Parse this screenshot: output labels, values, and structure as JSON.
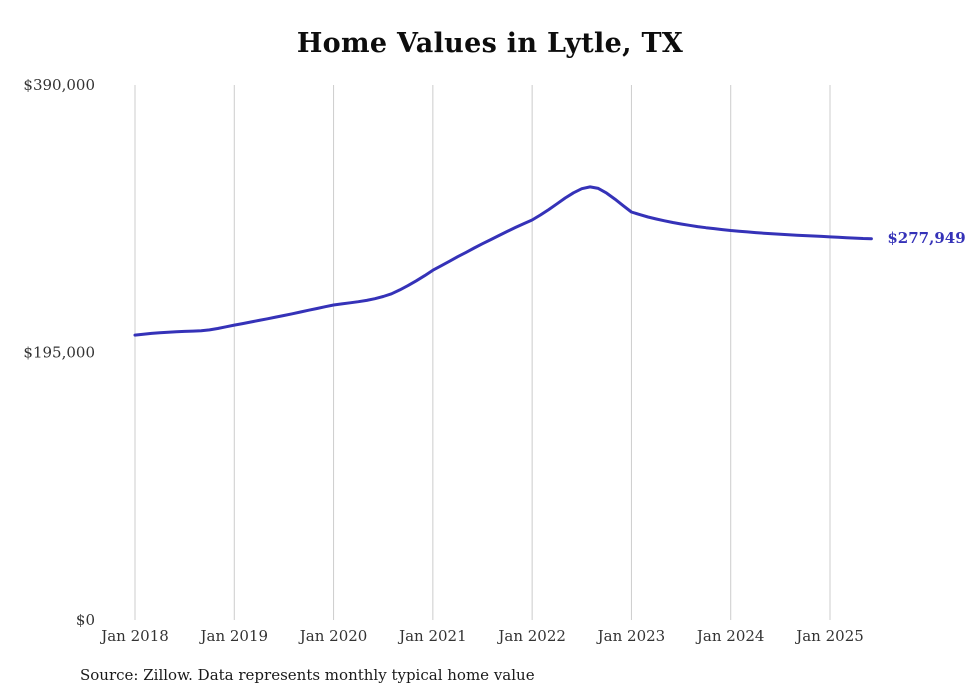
{
  "chart_data": {
    "type": "line",
    "title": "Home Values in Lytle, TX",
    "source": "Source: Zillow. Data represents monthly typical home value",
    "end_label": "$277,949",
    "latest_value": 277949,
    "ylim": [
      0,
      390000
    ],
    "grid": "vertical-only",
    "legend": "none",
    "colors": {
      "line": "#3532b8",
      "grid": "#cccccc",
      "tick": "#333333",
      "title": "#0d0d0d"
    },
    "y_ticks": [
      {
        "label": "$0",
        "value": 0
      },
      {
        "label": "$195,000",
        "value": 195000
      },
      {
        "label": "$390,000",
        "value": 390000
      }
    ],
    "x_ticks": [
      {
        "label": "Jan 2018",
        "month_index": 0
      },
      {
        "label": "Jan 2019",
        "month_index": 12
      },
      {
        "label": "Jan 2020",
        "month_index": 24
      },
      {
        "label": "Jan 2021",
        "month_index": 36
      },
      {
        "label": "Jan 2022",
        "month_index": 48
      },
      {
        "label": "Jan 2023",
        "month_index": 60
      },
      {
        "label": "Jan 2024",
        "month_index": 72
      },
      {
        "label": "Jan 2025",
        "month_index": 84
      }
    ],
    "x": [
      "2018-01",
      "2018-02",
      "2018-03",
      "2018-04",
      "2018-05",
      "2018-06",
      "2018-07",
      "2018-08",
      "2018-09",
      "2018-10",
      "2018-11",
      "2018-12",
      "2019-01",
      "2019-02",
      "2019-03",
      "2019-04",
      "2019-05",
      "2019-06",
      "2019-07",
      "2019-08",
      "2019-09",
      "2019-10",
      "2019-11",
      "2019-12",
      "2020-01",
      "2020-02",
      "2020-03",
      "2020-04",
      "2020-05",
      "2020-06",
      "2020-07",
      "2020-08",
      "2020-09",
      "2020-10",
      "2020-11",
      "2020-12",
      "2021-01",
      "2021-02",
      "2021-03",
      "2021-04",
      "2021-05",
      "2021-06",
      "2021-07",
      "2021-08",
      "2021-09",
      "2021-10",
      "2021-11",
      "2021-12",
      "2022-01",
      "2022-02",
      "2022-03",
      "2022-04",
      "2022-05",
      "2022-06",
      "2022-07",
      "2022-08",
      "2022-09",
      "2022-10",
      "2022-11",
      "2022-12",
      "2023-01",
      "2023-02",
      "2023-03",
      "2023-04",
      "2023-05",
      "2023-06",
      "2023-07",
      "2023-08",
      "2023-09",
      "2023-10",
      "2023-11",
      "2023-12",
      "2024-01",
      "2024-02",
      "2024-03",
      "2024-04",
      "2024-05",
      "2024-06",
      "2024-07",
      "2024-08",
      "2024-09",
      "2024-10",
      "2024-11",
      "2024-12",
      "2025-01",
      "2025-02",
      "2025-03",
      "2025-04",
      "2025-05",
      "2025-06"
    ],
    "values": [
      207700,
      208300,
      208900,
      209400,
      209800,
      210100,
      210400,
      210600,
      210900,
      211500,
      212500,
      213700,
      215000,
      216100,
      217200,
      218400,
      219600,
      220800,
      222000,
      223200,
      224500,
      225800,
      227100,
      228400,
      229600,
      230400,
      231200,
      232000,
      233000,
      234200,
      235800,
      237800,
      240600,
      243800,
      247300,
      251000,
      255000,
      258200,
      261500,
      264800,
      268000,
      271200,
      274300,
      277300,
      280300,
      283300,
      286200,
      289000,
      291600,
      295200,
      299200,
      303400,
      307600,
      311400,
      314400,
      315700,
      314600,
      311200,
      306800,
      302000,
      297400,
      295500,
      293800,
      292300,
      291000,
      289800,
      288700,
      287700,
      286800,
      286000,
      285300,
      284600,
      283900,
      283400,
      282900,
      282400,
      282000,
      281600,
      281200,
      280800,
      280500,
      280200,
      279900,
      279600,
      279300,
      279000,
      278700,
      278400,
      278100,
      277949
    ]
  }
}
